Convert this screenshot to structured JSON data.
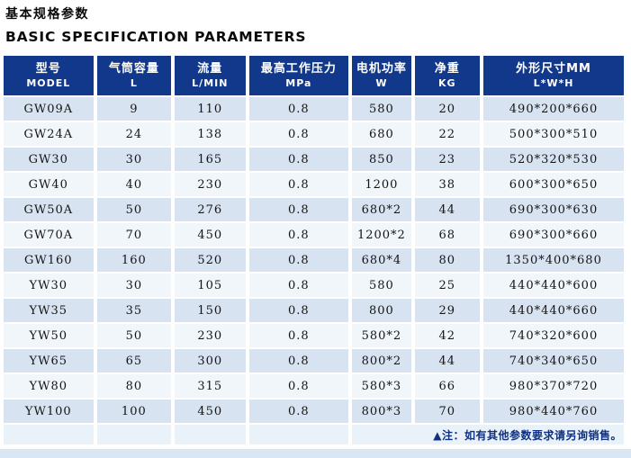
{
  "page": {
    "title_zh": "基本规格参数",
    "title_en": "BASIC SPECIFICATION PARAMETERS",
    "note": "▲注：如有其他参数要求请另询销售。"
  },
  "colors": {
    "header_bg": "#12388c",
    "row_odd_bg": "#d7e3f1",
    "row_even_bg": "#f1f6fb",
    "footer_bg": "#e9f1f9",
    "bottom_band_bg": "#d9e7f4",
    "note_text": "#10317f"
  },
  "table": {
    "columns": [
      {
        "zh": "型号",
        "en": "MODEL"
      },
      {
        "zh": "气筒容量",
        "en": "L"
      },
      {
        "zh": "流量",
        "en": "L/MIN"
      },
      {
        "zh": "最高工作压力",
        "en": "MPa"
      },
      {
        "zh": "电机功率",
        "en": "W"
      },
      {
        "zh": "净重",
        "en": "KG"
      },
      {
        "zh": "外形尺寸MM",
        "en": "L*W*H"
      }
    ],
    "rows": [
      [
        "GW09A",
        "9",
        "110",
        "0.8",
        "580",
        "20",
        "490*200*660"
      ],
      [
        "GW24A",
        "24",
        "138",
        "0.8",
        "680",
        "22",
        "500*300*510"
      ],
      [
        "GW30",
        "30",
        "165",
        "0.8",
        "850",
        "23",
        "520*320*530"
      ],
      [
        "GW40",
        "40",
        "230",
        "0.8",
        "1200",
        "38",
        "600*300*650"
      ],
      [
        "GW50A",
        "50",
        "276",
        "0.8",
        "680*2",
        "44",
        "690*300*630"
      ],
      [
        "GW70A",
        "70",
        "450",
        "0.8",
        "1200*2",
        "68",
        "690*300*660"
      ],
      [
        "GW160",
        "160",
        "520",
        "0.8",
        "680*4",
        "80",
        "1350*400*680"
      ],
      [
        "YW30",
        "30",
        "105",
        "0.8",
        "580",
        "25",
        "440*440*600"
      ],
      [
        "YW35",
        "35",
        "150",
        "0.8",
        "800",
        "29",
        "440*440*660"
      ],
      [
        "YW50",
        "50",
        "230",
        "0.8",
        "580*2",
        "42",
        "740*320*600"
      ],
      [
        "YW65",
        "65",
        "300",
        "0.8",
        "800*2",
        "44",
        "740*340*650"
      ],
      [
        "YW80",
        "80",
        "315",
        "0.8",
        "580*3",
        "66",
        "980*370*720"
      ],
      [
        "YW100",
        "100",
        "450",
        "0.8",
        "800*3",
        "70",
        "980*440*760"
      ]
    ]
  }
}
